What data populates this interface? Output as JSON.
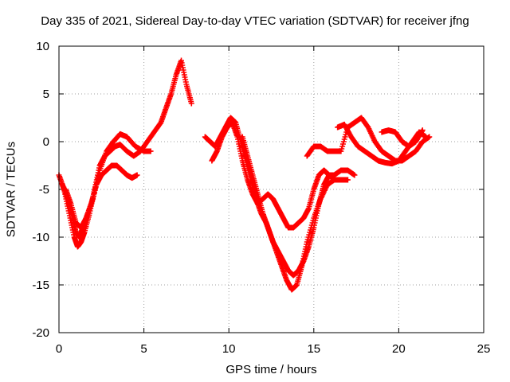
{
  "chart_data": {
    "type": "scatter",
    "title": "Day 335 of 2021, Sidereal Day-to-day VTEC variation (SDTVAR) for receiver jfng",
    "xlabel": "GPS time / hours",
    "ylabel": "SDTVAR / TECUs",
    "xlim": [
      0,
      25
    ],
    "ylim": [
      -20,
      10
    ],
    "x_ticks": [
      0,
      5,
      10,
      15,
      20,
      25
    ],
    "x_tick_labels": [
      "0",
      "5",
      "10",
      "15",
      "20",
      "25"
    ],
    "y_ticks": [
      -20,
      -15,
      -10,
      -5,
      0,
      5,
      10
    ],
    "y_tick_labels": [
      "-20",
      "-15",
      "-10",
      "-5",
      "0",
      "5",
      "10"
    ],
    "grid": true,
    "marker": "plus",
    "color": "#ff0000",
    "series": [
      {
        "x": [
          0.0,
          0.3,
          0.6,
          0.9,
          1.1,
          1.3,
          1.5,
          1.8,
          2.1,
          2.4,
          2.7,
          3.0,
          3.3,
          3.6,
          4.0,
          4.4,
          4.8,
          5.2,
          5.6,
          6.0,
          6.3,
          6.6,
          6.9,
          7.2,
          7.5,
          7.8
        ],
        "y": [
          -3.5,
          -5.0,
          -7.5,
          -10.0,
          -11.0,
          -10.5,
          -9.5,
          -7.5,
          -5.0,
          -2.5,
          -1.5,
          -1.0,
          -0.5,
          -0.3,
          -1.0,
          -1.5,
          -1.0,
          0.0,
          1.0,
          2.0,
          3.5,
          5.0,
          7.0,
          8.5,
          6.0,
          4.0
        ]
      },
      {
        "x": [
          0.2,
          0.5,
          0.8,
          1.0,
          1.2,
          1.4,
          1.6,
          1.9,
          2.2,
          2.5,
          2.8,
          3.1,
          3.4,
          3.7,
          4.0,
          4.3,
          4.6
        ],
        "y": [
          -4.5,
          -6.0,
          -8.0,
          -9.5,
          -10.0,
          -9.0,
          -8.0,
          -6.5,
          -4.5,
          -3.5,
          -3.0,
          -2.5,
          -2.5,
          -3.0,
          -3.5,
          -3.8,
          -3.5
        ]
      },
      {
        "x": [
          0.4,
          0.7,
          1.0,
          1.3,
          1.6,
          2.0,
          2.4,
          2.8,
          3.2,
          3.6,
          4.0,
          4.5,
          5.0,
          5.4
        ],
        "y": [
          -5.0,
          -6.5,
          -8.5,
          -9.0,
          -8.0,
          -6.0,
          -3.0,
          -1.0,
          0.0,
          0.8,
          0.5,
          -0.5,
          -1.0,
          -1.0
        ]
      },
      {
        "x": [
          8.6,
          8.9,
          9.2,
          9.5,
          9.8,
          10.1,
          10.4,
          10.7,
          11.0,
          11.3,
          11.6,
          11.9,
          12.2,
          12.5,
          12.8,
          13.1,
          13.4,
          13.7,
          14.0,
          14.3,
          14.6,
          15.0,
          15.4,
          15.8,
          16.2,
          16.6,
          17.0
        ],
        "y": [
          0.5,
          0.0,
          -0.5,
          0.5,
          1.5,
          2.5,
          2.0,
          0.0,
          -2.0,
          -4.0,
          -6.0,
          -7.5,
          -8.5,
          -10.0,
          -11.5,
          -13.0,
          -14.5,
          -15.5,
          -15.0,
          -13.0,
          -10.5,
          -8.0,
          -6.0,
          -4.5,
          -4.0,
          -4.0,
          -4.0
        ]
      },
      {
        "x": [
          9.0,
          9.3,
          9.6,
          9.9,
          10.2,
          10.5,
          10.8,
          11.1,
          11.4,
          11.7,
          12.0,
          12.3,
          12.6,
          12.9,
          13.2,
          13.5,
          13.8,
          14.1,
          14.4,
          14.7,
          15.0,
          15.3,
          15.6,
          15.9,
          16.2
        ],
        "y": [
          -2.0,
          -1.0,
          0.5,
          1.5,
          2.0,
          0.5,
          -2.0,
          -4.0,
          -5.5,
          -6.5,
          -6.0,
          -5.5,
          -6.0,
          -7.0,
          -8.0,
          -9.0,
          -9.0,
          -8.5,
          -8.0,
          -7.0,
          -5.0,
          -3.5,
          -3.0,
          -3.5,
          -4.0
        ]
      },
      {
        "x": [
          10.8,
          11.1,
          11.4,
          11.7,
          12.0,
          12.3,
          12.6,
          12.9,
          13.2,
          13.5,
          13.8,
          14.1,
          14.4,
          14.7,
          15.0,
          15.3,
          15.6,
          15.9,
          16.2,
          16.6,
          17.0,
          17.4
        ],
        "y": [
          0.5,
          -1.5,
          -3.5,
          -5.5,
          -7.5,
          -9.0,
          -10.5,
          -11.5,
          -12.5,
          -13.5,
          -14.0,
          -13.5,
          -12.5,
          -11.0,
          -9.0,
          -6.5,
          -4.5,
          -3.5,
          -3.5,
          -3.0,
          -3.0,
          -3.5
        ]
      },
      {
        "x": [
          14.6,
          15.0,
          15.4,
          15.8,
          16.2,
          16.6,
          17.0,
          17.4,
          17.8,
          18.2,
          18.6,
          19.0,
          19.4,
          19.8,
          20.2,
          20.6,
          21.0,
          21.4,
          21.8
        ],
        "y": [
          -1.5,
          -0.5,
          -0.5,
          -1.0,
          -1.0,
          -1.0,
          1.5,
          2.0,
          2.5,
          1.5,
          0.0,
          -1.0,
          -1.5,
          -2.0,
          -2.0,
          -1.5,
          -1.0,
          0.0,
          0.5
        ]
      },
      {
        "x": [
          16.4,
          16.8,
          17.2,
          17.6,
          18.0,
          18.4,
          18.8,
          19.2,
          19.6,
          20.0,
          20.4,
          20.8,
          21.2,
          21.6
        ],
        "y": [
          1.5,
          1.8,
          0.5,
          -0.5,
          -1.0,
          -1.5,
          -2.0,
          -2.2,
          -2.3,
          -2.0,
          -1.0,
          0.0,
          1.0,
          0.5
        ]
      },
      {
        "x": [
          19.0,
          19.4,
          19.8,
          20.2,
          20.6,
          21.0,
          21.4
        ],
        "y": [
          1.0,
          1.2,
          1.0,
          0.0,
          -0.5,
          0.0,
          1.2
        ]
      }
    ]
  }
}
